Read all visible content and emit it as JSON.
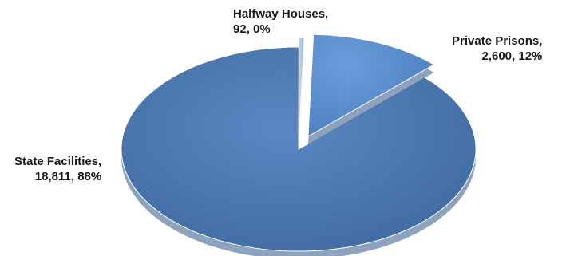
{
  "chart_data": {
    "type": "pie",
    "title": "",
    "slices": [
      {
        "name": "State Facilities",
        "value": 18811,
        "value_text": "18,811",
        "percent_text": "88%",
        "label_sep": ",",
        "color": "#4a78b0"
      },
      {
        "name": "Private Prisons",
        "value": 2600,
        "value_text": "2,600",
        "percent_text": "12%",
        "label_sep": ",",
        "color": "#5b8fd1"
      },
      {
        "name": "Halfway Houses",
        "value": 92,
        "value_text": "92",
        "percent_text": "0%",
        "label_sep": ",",
        "color": "#a9c3e6"
      }
    ],
    "style": "3d-tilted-exploded",
    "legend": "none",
    "grid": false
  }
}
